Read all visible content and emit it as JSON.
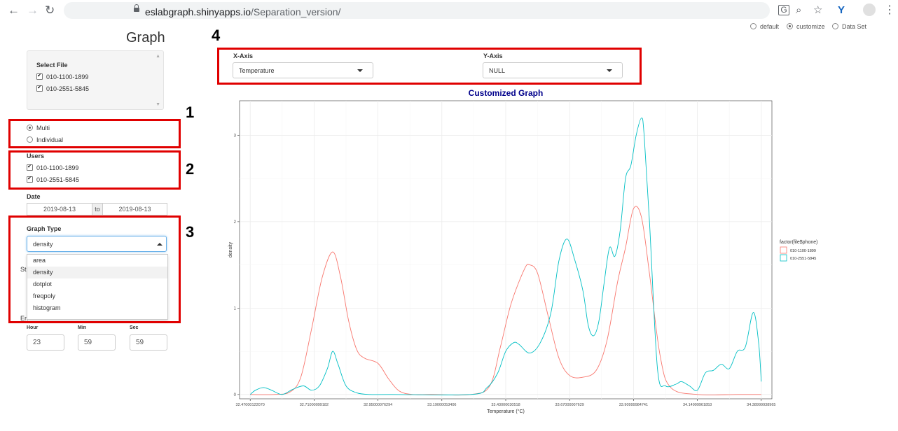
{
  "browser": {
    "url_host": "eslabgraph.shinyapps.io",
    "url_path": "/Separation_version/",
    "icons": [
      "back-arrow-icon",
      "forward-arrow-icon",
      "reload-icon",
      "lock-icon",
      "translate-icon",
      "zoom-icon",
      "star-icon",
      "extension-icon",
      "profile-icon",
      "more-menu-icon"
    ]
  },
  "mode_options": [
    {
      "label": "default",
      "selected": false
    },
    {
      "label": "customize",
      "selected": true
    },
    {
      "label": "Data Set",
      "selected": false
    }
  ],
  "sidebar": {
    "title": "Graph",
    "select_file": {
      "label": "Select File",
      "files": [
        {
          "label": "010-1100-1899",
          "checked": true
        },
        {
          "label": "010-2551-5845",
          "checked": true
        }
      ]
    },
    "view_mode": [
      {
        "label": "Multi",
        "selected": true
      },
      {
        "label": "Individual",
        "selected": false
      }
    ],
    "users": {
      "label": "Users",
      "items": [
        {
          "label": "010-1100-1899",
          "checked": true
        },
        {
          "label": "010-2551-5845",
          "checked": true
        }
      ]
    },
    "date": {
      "label": "Date",
      "from": "2019-08-13",
      "sep": "to",
      "to": "2019-08-13"
    },
    "graph_type": {
      "label": "Graph Type",
      "selected": "density",
      "options": [
        "area",
        "density",
        "dotplot",
        "freqpoly",
        "histogram"
      ],
      "highlighted": "density"
    },
    "hidden_label_start": "St",
    "hidden_label_end": "En",
    "time": {
      "hour_label": "Hour",
      "min_label": "Min",
      "sec_label": "Sec",
      "hour": "23",
      "min": "59",
      "sec": "59"
    }
  },
  "annotations": {
    "n1": "1",
    "n2": "2",
    "n3": "3",
    "n4": "4"
  },
  "axes_select": {
    "x_label": "X-Axis",
    "x_value": "Temperature",
    "y_label": "Y-Axis",
    "y_value": "NULL"
  },
  "colors": {
    "series1": "#f8766d",
    "series2": "#00bfc4",
    "title": "#00008b",
    "annotation_red": "#e00000"
  },
  "chart_data": {
    "type": "line",
    "title": "Customized Graph",
    "xlabel": "Temperature (°C)",
    "ylabel": "density",
    "xlim": [
      32.43,
      34.43
    ],
    "ylim": [
      -0.05,
      3.4
    ],
    "x_ticks": [
      32.4700012207,
      32.71000099182,
      32.95000076294,
      33.19000053406,
      33.43000030518,
      33.67000007629,
      33.90999984741,
      34.14999961853,
      34.38999938965
    ],
    "x_tick_labels": [
      "32.47000122070",
      "32.71000099182",
      "32.95000076294",
      "33.19000053406",
      "33.43000030518",
      "33.67000007629",
      "33.90999984741",
      "34.14999961853",
      "34.38999938965"
    ],
    "y_ticks": [
      0,
      1,
      2,
      3
    ],
    "y_tick_labels": [
      "0",
      "1",
      "2",
      "3"
    ],
    "grid": true,
    "legend": {
      "title": "factor(file$phone)",
      "placement": "right"
    },
    "series": [
      {
        "name": "010-1100-1899",
        "color": "#f8766d",
        "x": [
          32.47,
          32.56,
          32.62,
          32.66,
          32.7,
          32.74,
          32.78,
          32.81,
          32.84,
          32.87,
          32.9,
          32.95,
          32.99,
          33.03,
          33.08,
          33.15,
          33.3,
          33.37,
          33.41,
          33.45,
          33.5,
          33.52,
          33.55,
          33.59,
          33.63,
          33.67,
          33.72,
          33.77,
          33.81,
          33.85,
          33.88,
          33.91,
          33.94,
          33.97,
          34.01,
          34.05,
          34.15,
          34.3,
          34.39
        ],
        "y": [
          0,
          0,
          0.03,
          0.2,
          0.75,
          1.35,
          1.65,
          1.35,
          0.85,
          0.52,
          0.42,
          0.36,
          0.18,
          0.04,
          0,
          0,
          0,
          0.1,
          0.55,
          1.05,
          1.45,
          1.5,
          1.4,
          0.9,
          0.42,
          0.22,
          0.2,
          0.28,
          0.62,
          1.3,
          1.7,
          2.15,
          2.05,
          1.4,
          0.45,
          0.08,
          0,
          0,
          0
        ]
      },
      {
        "name": "010-2551-5845",
        "color": "#00bfc4",
        "x": [
          32.47,
          32.49,
          32.52,
          32.55,
          32.59,
          32.63,
          32.67,
          32.7,
          32.73,
          32.76,
          32.78,
          32.8,
          32.83,
          32.87,
          32.92,
          33.0,
          33.3,
          33.36,
          33.4,
          33.43,
          33.46,
          33.48,
          33.52,
          33.56,
          33.6,
          33.63,
          33.66,
          33.69,
          33.72,
          33.74,
          33.76,
          33.78,
          33.8,
          33.82,
          33.84,
          33.86,
          33.88,
          33.9,
          33.92,
          33.94,
          33.95,
          33.97,
          34.0,
          34.03,
          34.07,
          34.09,
          34.12,
          34.15,
          34.18,
          34.21,
          34.24,
          34.27,
          34.3,
          34.33,
          34.36,
          34.38,
          34.39
        ],
        "y": [
          0,
          0.05,
          0.08,
          0.05,
          0,
          0.06,
          0.1,
          0.05,
          0.1,
          0.3,
          0.5,
          0.35,
          0.1,
          0.02,
          0,
          0,
          0,
          0.08,
          0.25,
          0.5,
          0.6,
          0.58,
          0.48,
          0.6,
          0.95,
          1.55,
          1.8,
          1.55,
          1.2,
          0.8,
          0.68,
          0.85,
          1.3,
          1.7,
          1.6,
          1.9,
          2.5,
          2.65,
          3.0,
          3.2,
          3.0,
          2.0,
          0.3,
          0.1,
          0.12,
          0.15,
          0.1,
          0.05,
          0.25,
          0.28,
          0.35,
          0.3,
          0.5,
          0.55,
          0.95,
          0.6,
          0.15
        ]
      }
    ]
  }
}
